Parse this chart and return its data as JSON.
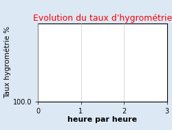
{
  "title": "Evolution du taux d'hygrométrie",
  "title_color": "#ff0000",
  "xlabel": "heure par heure",
  "ylabel": "Taux hygrométrie %",
  "xlim": [
    0,
    3
  ],
  "xticks": [
    0,
    1,
    2,
    3
  ],
  "ytick_label": "100.0",
  "background_color": "#dce9f5",
  "plot_bg_color": "#ffffff",
  "grid_color": "#c8c8c8",
  "title_fontsize": 9,
  "xlabel_fontsize": 8,
  "ylabel_fontsize": 7.5,
  "tick_fontsize": 7
}
